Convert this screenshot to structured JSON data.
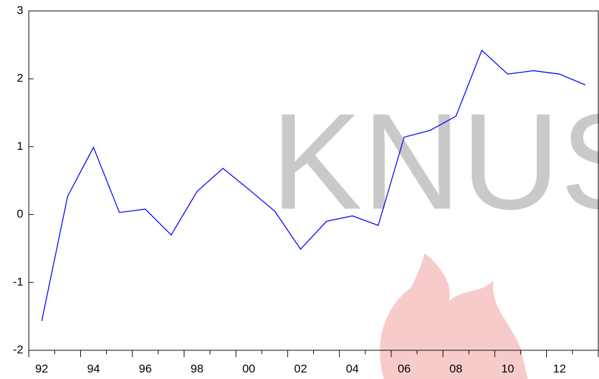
{
  "watermark": "KNUS",
  "chart_data": {
    "type": "line",
    "categories": [
      "92",
      null,
      "94",
      null,
      "96",
      null,
      "98",
      null,
      "00",
      null,
      "02",
      null,
      "04",
      null,
      "06",
      null,
      "08",
      null,
      "10",
      null,
      "12",
      null
    ],
    "values": [
      -1.57,
      0.27,
      0.99,
      0.03,
      0.08,
      -0.3,
      0.34,
      0.68,
      0.37,
      0.05,
      -0.51,
      -0.1,
      -0.02,
      -0.16,
      1.14,
      1.24,
      1.45,
      2.42,
      2.07,
      2.12,
      2.07,
      1.91
    ],
    "color": "#0000ff",
    "ylim": [
      -2,
      3
    ],
    "yticks": [
      -2,
      -1,
      0,
      1,
      2,
      3
    ],
    "grid": false
  }
}
